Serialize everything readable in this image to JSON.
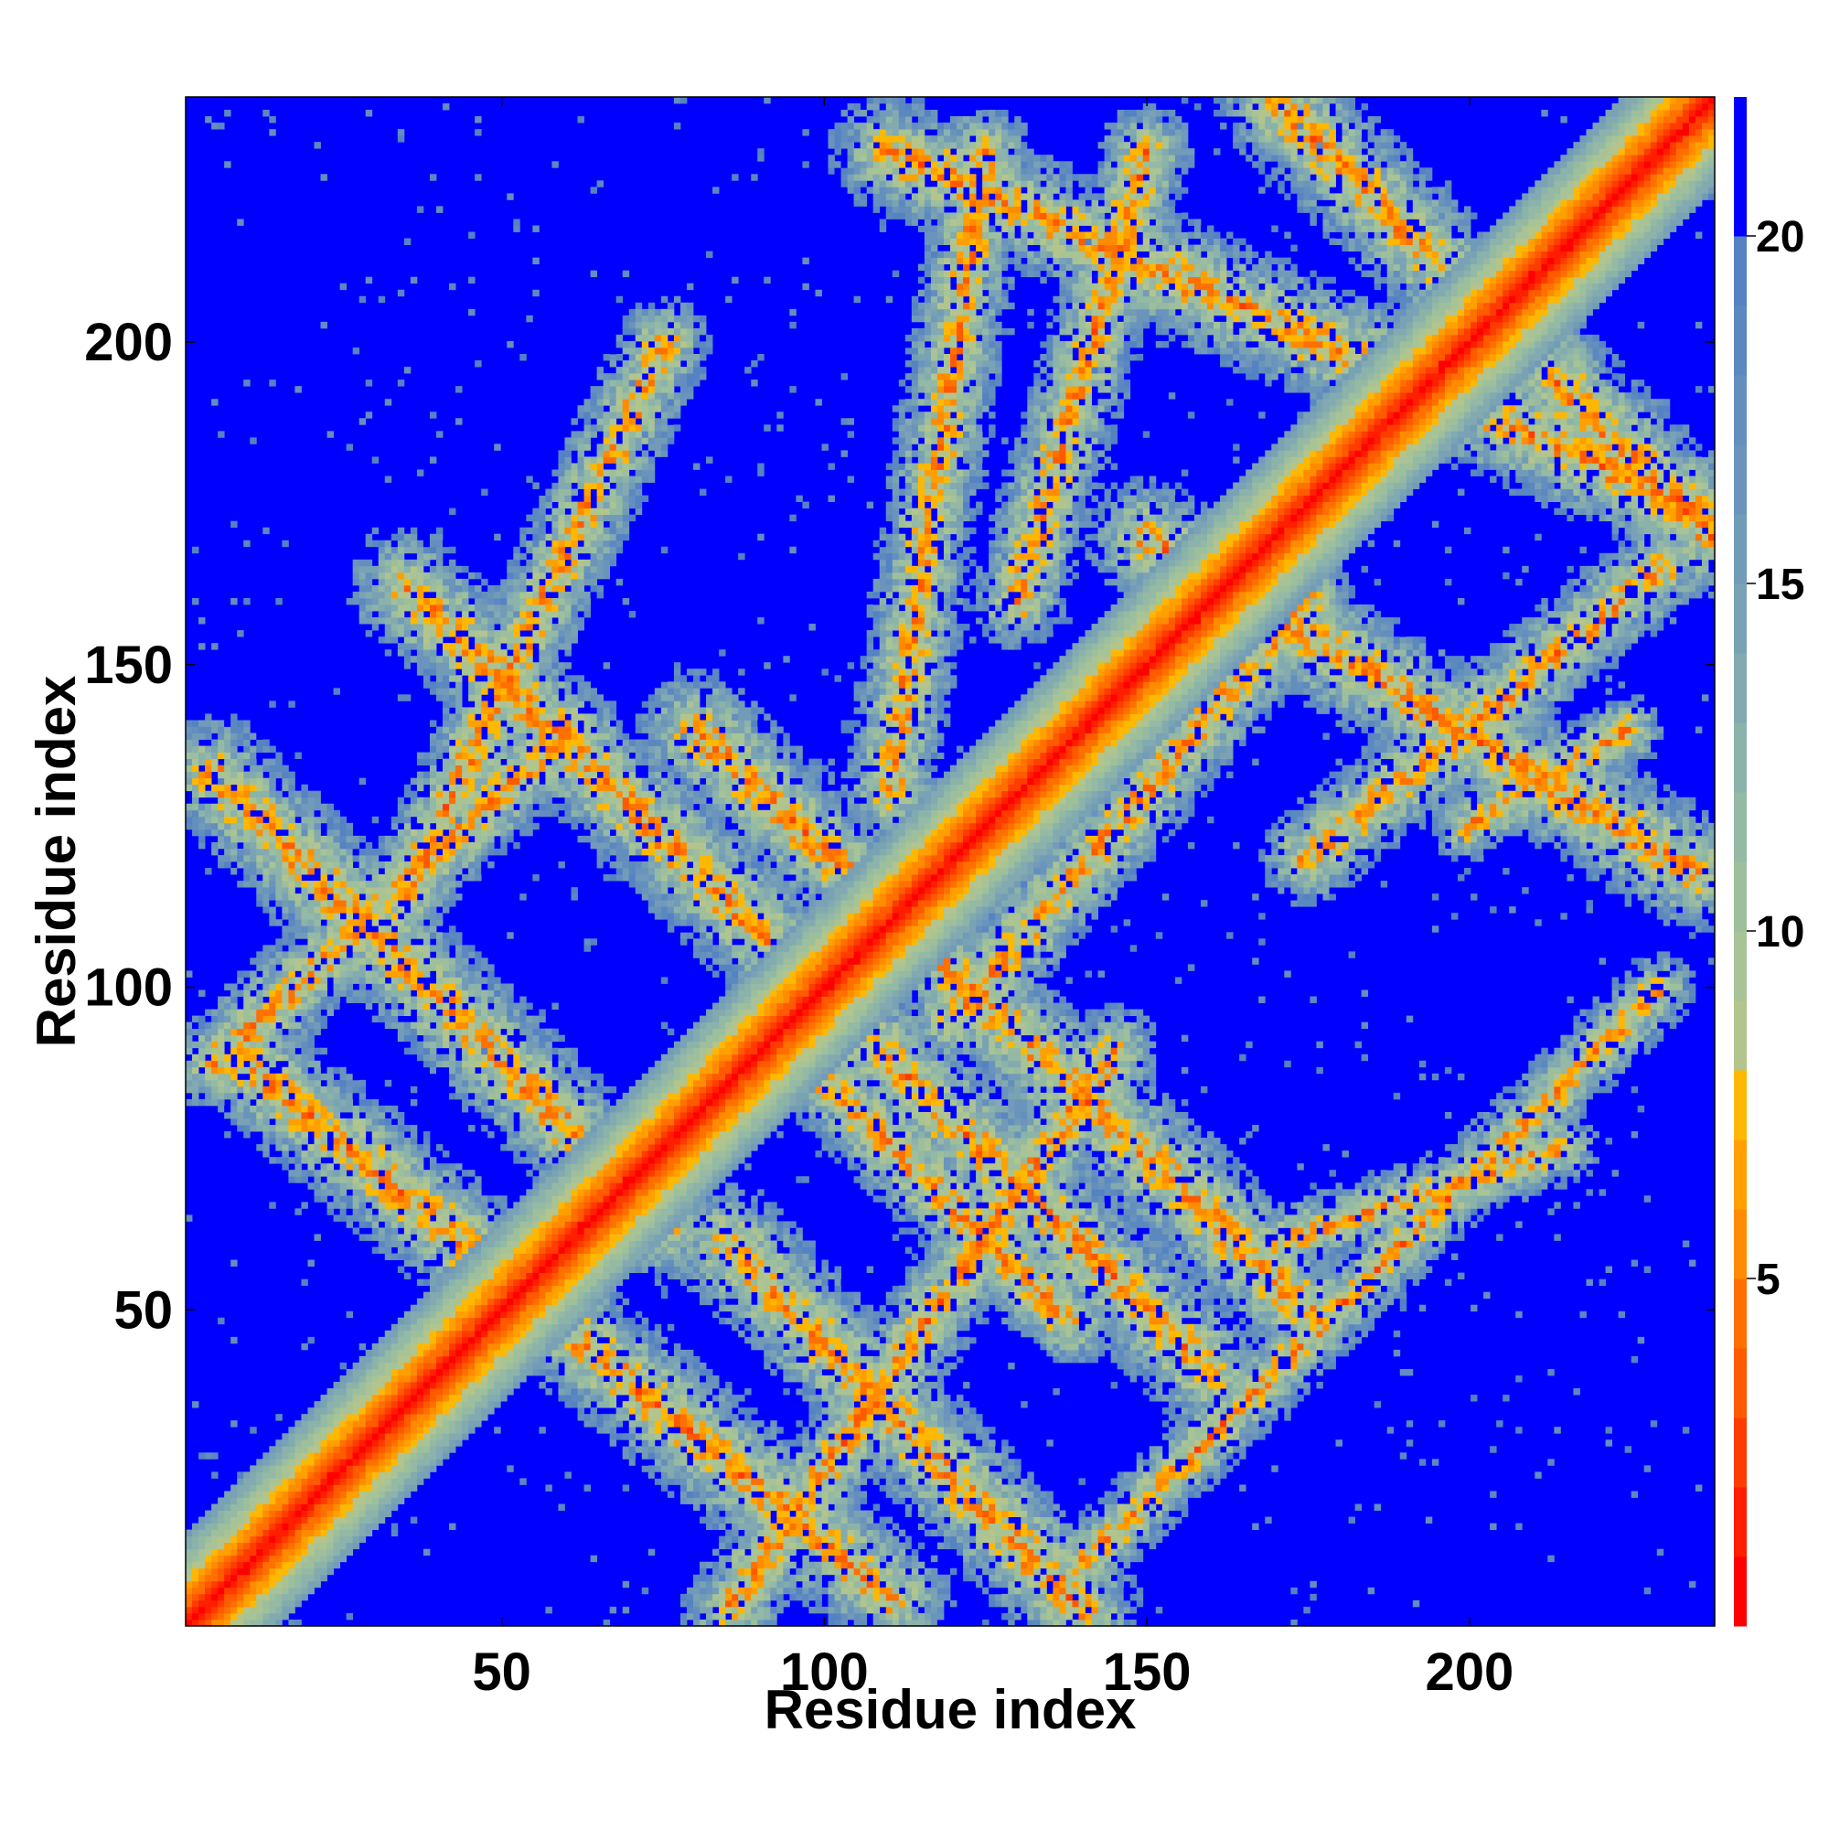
{
  "chart_data": {
    "type": "heatmap",
    "title": "",
    "xlabel": "Residue index",
    "ylabel": "Residue index",
    "xlim": [
      1,
      238
    ],
    "ylim": [
      1,
      238
    ],
    "x_ticks": [
      50,
      100,
      150,
      200
    ],
    "y_ticks": [
      50,
      100,
      150,
      200
    ],
    "n_residues": 238,
    "colorbar": {
      "ticks": [
        5,
        10,
        15,
        20
      ],
      "range": [
        0,
        22
      ],
      "levels": [
        {
          "max": 1,
          "color": "#ff0000"
        },
        {
          "max": 2,
          "color": "#ff1e00"
        },
        {
          "max": 3,
          "color": "#ff3c00"
        },
        {
          "max": 4,
          "color": "#ff5a00"
        },
        {
          "max": 5,
          "color": "#ff7000"
        },
        {
          "max": 6,
          "color": "#ff8c00"
        },
        {
          "max": 7,
          "color": "#ffa000"
        },
        {
          "max": 8,
          "color": "#ffb800"
        },
        {
          "max": 9,
          "color": "#b3c58c"
        },
        {
          "max": 10,
          "color": "#a8c396"
        },
        {
          "max": 11,
          "color": "#9ebf9c"
        },
        {
          "max": 12,
          "color": "#94b9a4"
        },
        {
          "max": 13,
          "color": "#8bb3aa"
        },
        {
          "max": 14,
          "color": "#82aab0"
        },
        {
          "max": 15,
          "color": "#7aa2b5"
        },
        {
          "max": 16,
          "color": "#729bb8"
        },
        {
          "max": 17,
          "color": "#6a94bb"
        },
        {
          "max": 18,
          "color": "#638ebe"
        },
        {
          "max": 19,
          "color": "#5c88c0"
        },
        {
          "max": 20,
          "color": "#5582c2"
        },
        {
          "max": 22,
          "color": "#0000ff"
        }
      ]
    },
    "contact_bands": [
      {
        "x0": 5,
        "y0": 133,
        "x1": 75,
        "y1": 63,
        "width": 5
      },
      {
        "x0": 35,
        "y0": 162,
        "x1": 160,
        "y1": 40,
        "width": 5
      },
      {
        "x0": 110,
        "y0": 230,
        "x1": 235,
        "y1": 175,
        "width": 5
      },
      {
        "x0": 170,
        "y0": 238,
        "x1": 238,
        "y1": 170,
        "width": 5
      },
      {
        "x0": 150,
        "y0": 170,
        "x1": 235,
        "y1": 118,
        "width": 5
      },
      {
        "x0": 80,
        "y0": 140,
        "x1": 175,
        "y1": 50,
        "width": 5
      },
      {
        "x0": 10,
        "y0": 88,
        "x1": 110,
        "y1": 5,
        "width": 5
      },
      {
        "x0": 85,
        "y0": 60,
        "x1": 140,
        "y1": 3,
        "width": 5
      },
      {
        "x0": 90,
        "y0": 95,
        "x1": 138,
        "y1": 48,
        "width": 4
      },
      {
        "x0": 5,
        "y0": 88,
        "x1": 60,
        "y1": 140,
        "width": 4
      },
      {
        "x0": 35,
        "y0": 115,
        "x1": 75,
        "y1": 200,
        "width": 4
      },
      {
        "x0": 85,
        "y0": 3,
        "x1": 145,
        "y1": 90,
        "width": 4
      },
      {
        "x0": 140,
        "y0": 10,
        "x1": 230,
        "y1": 100,
        "width": 3
      },
      {
        "x0": 120,
        "y0": 95,
        "x1": 175,
        "y1": 160,
        "width": 4
      },
      {
        "x0": 130,
        "y0": 160,
        "x1": 150,
        "y1": 230,
        "width": 4
      },
      {
        "x0": 110,
        "y0": 130,
        "x1": 125,
        "y1": 230,
        "width": 4
      },
      {
        "x0": 170,
        "y0": 60,
        "x1": 215,
        "y1": 75,
        "width": 3
      },
      {
        "x0": 175,
        "y0": 120,
        "x1": 230,
        "y1": 165,
        "width": 4
      },
      {
        "x0": 200,
        "y0": 125,
        "x1": 225,
        "y1": 140,
        "width": 3
      }
    ]
  }
}
